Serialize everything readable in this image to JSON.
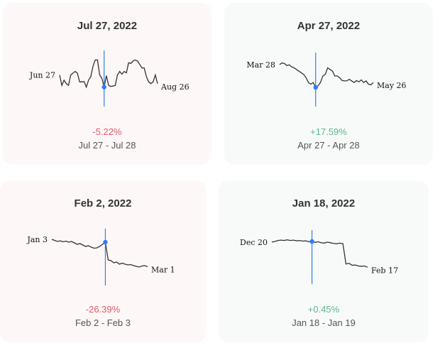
{
  "colors": {
    "negative": "#e5566a",
    "positive": "#5bb88a",
    "marker": "#2f7cf6",
    "line": "#333333"
  },
  "cards": [
    {
      "title": "Jul 27, 2022",
      "change": "-5.22%",
      "direction": "negative",
      "range": "Jul 27 - Jul 28",
      "start_label": "Jun 27",
      "end_label": "Aug 26",
      "values": [
        5,
        2,
        3.5,
        2.5,
        2,
        5,
        5.5,
        6,
        5.5,
        3,
        3,
        3.1,
        1.5,
        3.5,
        4.5,
        7.5,
        9.3,
        9.3,
        5,
        4,
        1.5,
        4.8,
        2,
        1.7,
        1.8,
        2,
        5,
        6,
        5.2,
        6,
        5.6,
        8.5,
        8.3,
        9,
        9.3,
        9,
        8,
        7,
        7,
        4.5,
        3,
        2.5,
        3,
        5,
        2.5
      ],
      "marker_index": 20
    },
    {
      "title": "Apr 27, 2022",
      "change": "+17.59%",
      "direction": "positive",
      "range": "Apr 27 - Apr 28",
      "start_label": "Mar 28",
      "end_label": "May 26",
      "values": [
        8.5,
        9,
        8.8,
        8.2,
        8.4,
        7.8,
        7.5,
        7,
        6.5,
        6,
        5.5,
        4.5,
        3,
        2.5,
        3,
        1.5,
        2,
        3,
        5,
        5.5,
        7.5,
        7,
        6.5,
        5,
        5,
        4.5,
        3.6,
        3.5,
        3.5,
        4,
        3.5,
        3,
        3.6,
        3.2,
        3.8,
        3,
        3.5,
        2.5,
        2.3,
        3
      ],
      "marker_index": 15
    },
    {
      "title": "Feb 2, 2022",
      "change": "-26.39%",
      "direction": "negative",
      "range": "Feb 2 - Feb 3",
      "start_label": "Jan 3",
      "end_label": "Mar 1",
      "values": [
        9,
        8.7,
        8.4,
        8.6,
        8.3,
        8.5,
        8.2,
        8.4,
        8,
        7.6,
        7.8,
        7.4,
        7,
        7.2,
        6.8,
        6.5,
        6.6,
        7,
        7.6,
        8.2,
        3.2,
        3,
        2.4,
        2.6,
        2,
        2.3,
        2,
        1.8,
        1.9,
        1.6,
        1.4,
        1.2,
        1.5,
        1.6,
        1.3
      ],
      "marker_index": 19
    },
    {
      "title": "Jan 18, 2022",
      "change": "+0.45%",
      "direction": "positive",
      "range": "Jan 18 - Jan 19",
      "start_label": "Dec 20",
      "end_label": "Feb 17",
      "values": [
        8.5,
        8.7,
        9,
        9.1,
        9,
        9.2,
        9,
        9.1,
        8.9,
        9,
        8.8,
        8.9,
        8.6,
        8.7,
        8.4,
        8.6,
        8.3,
        8.2,
        8.5,
        8.3,
        8.1,
        8,
        8.2,
        8,
        1.8,
        2,
        1.4,
        1.5,
        1.2,
        1.1,
        1.2,
        0.8
      ],
      "marker_index": 13
    }
  ]
}
